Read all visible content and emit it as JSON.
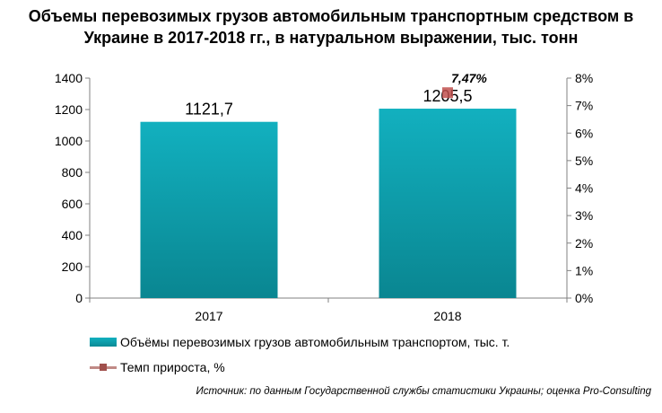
{
  "title_lines": [
    "Объемы перевозимых грузов автомобильным транспортным средством в",
    "Украине в 2017-2018 гг., в натуральном выражении, тыс. тонн"
  ],
  "chart_data": {
    "type": "bar",
    "categories": [
      "2017",
      "2018"
    ],
    "series": [
      {
        "name": "Объёмы перевозимых грузов автомобильным транспортом, тыс. т.",
        "type": "bar",
        "axis": "left",
        "values": [
          1121.7,
          1205.5
        ],
        "labels": [
          "1121,7",
          "1205,5"
        ],
        "color": "#0ea3b0"
      },
      {
        "name": "Темп прироста, %",
        "type": "line",
        "axis": "right",
        "values": [
          null,
          7.47
        ],
        "labels": [
          "",
          "7,47%"
        ],
        "color": "#c0504d"
      }
    ],
    "ylim": [
      0,
      1400
    ],
    "yticks": [
      0,
      200,
      400,
      600,
      800,
      1000,
      1200,
      1400
    ],
    "y2lim": [
      0,
      8
    ],
    "y2ticks": [
      "0%",
      "1%",
      "2%",
      "3%",
      "4%",
      "5%",
      "6%",
      "7%",
      "8%"
    ],
    "legend_position": "bottom"
  },
  "legend": {
    "bar_label": "Объёмы перевозимых грузов автомобильным транспортом, тыс. т.",
    "line_label": "Темп прироста, %"
  },
  "source": "Источник: по данным Государственной службы статистики Украины; оценка Pro-Consulting"
}
